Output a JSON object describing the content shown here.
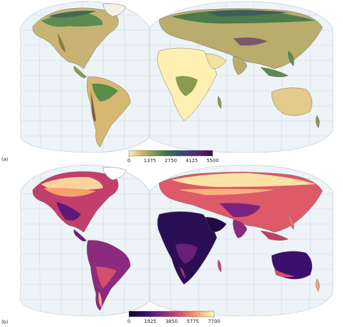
{
  "panels": [
    {
      "label": "(a)",
      "colorbar": {
        "ticks": [
          "0",
          "1375",
          "2750",
          "4125",
          "5500"
        ],
        "values": [
          0,
          1375,
          2750,
          4125,
          5500
        ],
        "min": 0,
        "max": 5500,
        "stops": [
          "#fdf6b6",
          "#d9b870",
          "#8a9a4e",
          "#3f7a4a",
          "#2f5b66",
          "#453a80",
          "#5a1f6b",
          "#3a0c44"
        ]
      }
    },
    {
      "label": "(b)",
      "colorbar": {
        "ticks": [
          "0",
          "1925",
          "3850",
          "5775",
          "7700"
        ],
        "values": [
          0,
          1925,
          3850,
          5775,
          7700
        ],
        "min": 0,
        "max": 7700,
        "stops": [
          "#0b0724",
          "#3b0f70",
          "#8c2981",
          "#de4968",
          "#fe9f6d",
          "#fcfdbf"
        ]
      }
    }
  ],
  "colors": {
    "ocean": "#eef3f8",
    "graticule": "#c9d3de",
    "coast": "#5a5a5a"
  }
}
